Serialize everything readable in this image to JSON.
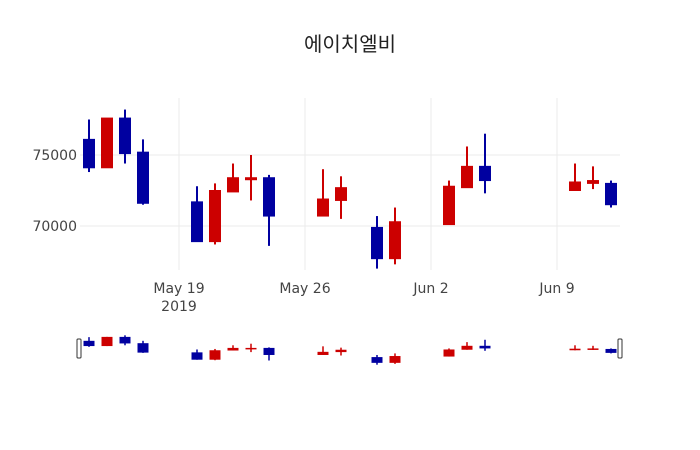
{
  "chart_data": {
    "type": "candlestick",
    "title": "에이치엘비",
    "xlabel": "",
    "ylabel": "",
    "ylim": [
      66500,
      78700
    ],
    "y_ticks": [
      70000,
      75000
    ],
    "x_ticks": [
      {
        "date": "2019-05-19",
        "label": "May 19",
        "sublabel": "2019"
      },
      {
        "date": "2019-05-26",
        "label": "May 26",
        "sublabel": ""
      },
      {
        "date": "2019-06-02",
        "label": "Jun 2",
        "sublabel": ""
      },
      {
        "date": "2019-06-09",
        "label": "Jun 9",
        "sublabel": ""
      }
    ],
    "x_range": [
      "2019-05-13",
      "2019-06-13"
    ],
    "grid": true,
    "legend": false,
    "rangeslider": true,
    "colors": {
      "increasing": "#cc0000",
      "decreasing": "#0000a0"
    },
    "candles": [
      {
        "date": "2019-05-14",
        "open": 76100,
        "high": 77500,
        "low": 73800,
        "close": 74100
      },
      {
        "date": "2019-05-15",
        "open": 74100,
        "high": 77600,
        "low": 74100,
        "close": 77600
      },
      {
        "date": "2019-05-16",
        "open": 77600,
        "high": 78200,
        "low": 74400,
        "close": 75100
      },
      {
        "date": "2019-05-17",
        "open": 75200,
        "high": 76100,
        "low": 71500,
        "close": 71600
      },
      {
        "date": "2019-05-20",
        "open": 71700,
        "high": 72800,
        "low": 68900,
        "close": 68900
      },
      {
        "date": "2019-05-21",
        "open": 68900,
        "high": 73000,
        "low": 68700,
        "close": 72500
      },
      {
        "date": "2019-05-22",
        "open": 72400,
        "high": 74400,
        "low": 72400,
        "close": 73400
      },
      {
        "date": "2019-05-23",
        "open": 73400,
        "high": 75000,
        "low": 71800,
        "close": 73400
      },
      {
        "date": "2019-05-24",
        "open": 73400,
        "high": 73600,
        "low": 68600,
        "close": 70700
      },
      {
        "date": "2019-05-27",
        "open": 70700,
        "high": 74000,
        "low": 70700,
        "close": 71900
      },
      {
        "date": "2019-05-28",
        "open": 71800,
        "high": 73500,
        "low": 70500,
        "close": 72700
      },
      {
        "date": "2019-05-30",
        "open": 69900,
        "high": 70700,
        "low": 67000,
        "close": 67700
      },
      {
        "date": "2019-05-31",
        "open": 67700,
        "high": 71300,
        "low": 67300,
        "close": 70300
      },
      {
        "date": "2019-06-03",
        "open": 70100,
        "high": 73200,
        "low": 70100,
        "close": 72800
      },
      {
        "date": "2019-06-04",
        "open": 72700,
        "high": 75600,
        "low": 72700,
        "close": 74200
      },
      {
        "date": "2019-06-05",
        "open": 74200,
        "high": 76500,
        "low": 72300,
        "close": 73200
      },
      {
        "date": "2019-06-10",
        "open": 72500,
        "high": 74400,
        "low": 72500,
        "close": 73100
      },
      {
        "date": "2019-06-11",
        "open": 73000,
        "high": 74200,
        "low": 72600,
        "close": 73200
      },
      {
        "date": "2019-06-12",
        "open": 73000,
        "high": 73200,
        "low": 71300,
        "close": 71500
      }
    ]
  }
}
